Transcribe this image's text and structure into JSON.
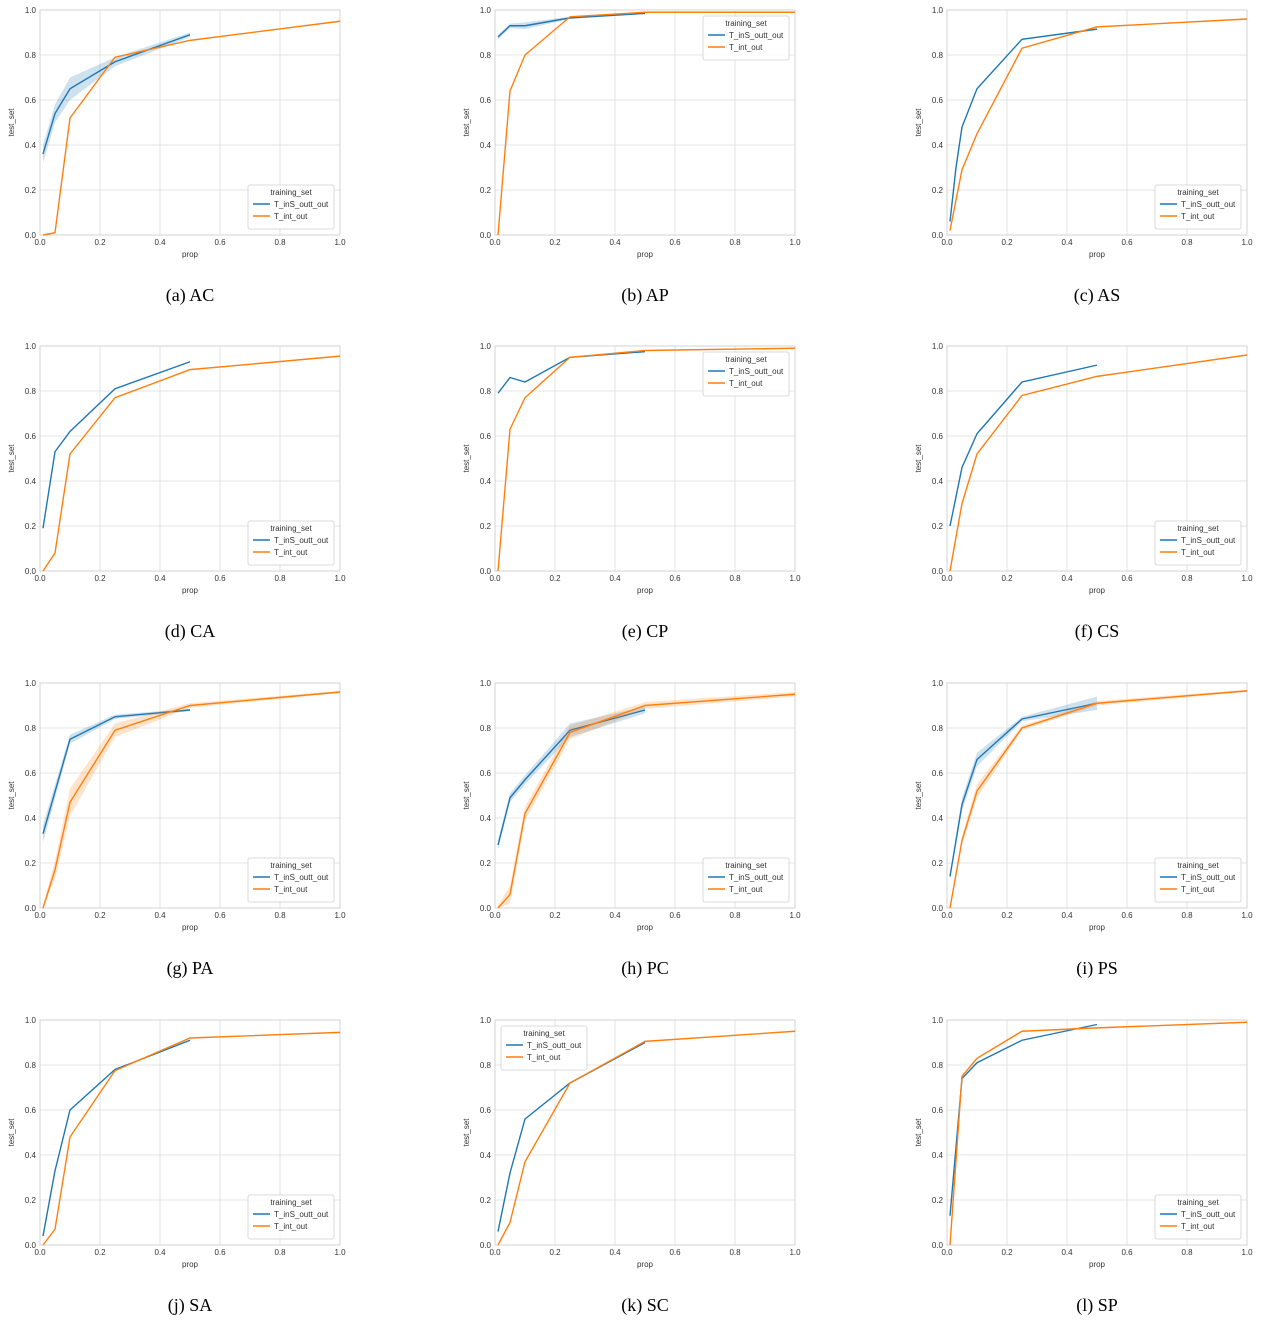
{
  "legend_title": "training_set",
  "series_names": [
    "T_inS_outt_out",
    "T_int_out"
  ],
  "colors": {
    "series_a": "#1f77b4",
    "series_b": "#ff7f0e",
    "band_a": "#1f77b4",
    "band_b": "#ff7f0e"
  },
  "chart_data": [
    {
      "type": "line",
      "caption": "(a) AC",
      "xlabel": "prop",
      "ylabel": "test_set",
      "xlim": [
        0,
        1
      ],
      "ylim": [
        0,
        1
      ],
      "xticks": [
        "0.0",
        "0.2",
        "0.4",
        "0.6",
        "0.8",
        "1.0"
      ],
      "yticks": [
        "0.0",
        "0.2",
        "0.4",
        "0.6",
        "0.8",
        "1.0"
      ],
      "grid": true,
      "legend_position": "lower-right",
      "series": [
        {
          "name": "T_inS_outt_out",
          "x": [
            0.01,
            0.05,
            0.1,
            0.25,
            0.5
          ],
          "y": [
            0.36,
            0.54,
            0.65,
            0.77,
            0.89
          ],
          "band": [
            0.04,
            0.04,
            0.05,
            0.02,
            0.01
          ]
        },
        {
          "name": "T_int_out",
          "x": [
            0.01,
            0.05,
            0.1,
            0.25,
            0.5,
            1.0
          ],
          "y": [
            0.0,
            0.01,
            0.52,
            0.79,
            0.865,
            0.95
          ]
        }
      ]
    },
    {
      "type": "line",
      "caption": "(b) AP",
      "xlabel": "prop",
      "ylabel": "test_set",
      "xlim": [
        0,
        1
      ],
      "ylim": [
        0,
        1
      ],
      "xticks": [
        "0.0",
        "0.2",
        "0.4",
        "0.6",
        "0.8",
        "1.0"
      ],
      "yticks": [
        "0.0",
        "0.2",
        "0.4",
        "0.6",
        "0.8",
        "1.0"
      ],
      "grid": true,
      "legend_position": "top-right",
      "series": [
        {
          "name": "T_inS_outt_out",
          "x": [
            0.01,
            0.05,
            0.1,
            0.25,
            0.5
          ],
          "y": [
            0.88,
            0.93,
            0.93,
            0.965,
            0.985
          ],
          "band": [
            0.01,
            0.01,
            0.015,
            0.005,
            0.003
          ]
        },
        {
          "name": "T_int_out",
          "x": [
            0.01,
            0.05,
            0.1,
            0.25,
            0.5,
            1.0
          ],
          "y": [
            0.0,
            0.64,
            0.8,
            0.97,
            0.99,
            0.99
          ]
        }
      ]
    },
    {
      "type": "line",
      "caption": "(c) AS",
      "xlabel": "prop",
      "ylabel": "test_set",
      "xlim": [
        0,
        1
      ],
      "ylim": [
        0,
        1
      ],
      "xticks": [
        "0.0",
        "0.2",
        "0.4",
        "0.6",
        "0.8",
        "1.0"
      ],
      "yticks": [
        "0.0",
        "0.2",
        "0.4",
        "0.6",
        "0.8",
        "1.0"
      ],
      "grid": true,
      "legend_position": "lower-right",
      "series": [
        {
          "name": "T_inS_outt_out",
          "x": [
            0.01,
            0.03,
            0.05,
            0.1,
            0.25,
            0.5
          ],
          "y": [
            0.06,
            0.3,
            0.48,
            0.65,
            0.87,
            0.915
          ]
        },
        {
          "name": "T_int_out",
          "x": [
            0.01,
            0.05,
            0.1,
            0.25,
            0.5,
            1.0
          ],
          "y": [
            0.02,
            0.29,
            0.45,
            0.83,
            0.925,
            0.96
          ]
        }
      ]
    },
    {
      "type": "line",
      "caption": "(d) CA",
      "xlabel": "prop",
      "ylabel": "test_set",
      "xlim": [
        0,
        1
      ],
      "ylim": [
        0,
        1
      ],
      "xticks": [
        "0.0",
        "0.2",
        "0.4",
        "0.6",
        "0.8",
        "1.0"
      ],
      "yticks": [
        "0.0",
        "0.2",
        "0.4",
        "0.6",
        "0.8",
        "1.0"
      ],
      "grid": true,
      "legend_position": "lower-right",
      "series": [
        {
          "name": "T_inS_outt_out",
          "x": [
            0.01,
            0.05,
            0.1,
            0.25,
            0.5
          ],
          "y": [
            0.19,
            0.53,
            0.62,
            0.81,
            0.93
          ]
        },
        {
          "name": "T_int_out",
          "x": [
            0.01,
            0.05,
            0.1,
            0.25,
            0.5,
            1.0
          ],
          "y": [
            0.0,
            0.08,
            0.52,
            0.77,
            0.895,
            0.955
          ]
        }
      ]
    },
    {
      "type": "line",
      "caption": "(e) CP",
      "xlabel": "prop",
      "ylabel": "test_set",
      "xlim": [
        0,
        1
      ],
      "ylim": [
        0,
        1
      ],
      "xticks": [
        "0.0",
        "0.2",
        "0.4",
        "0.6",
        "0.8",
        "1.0"
      ],
      "yticks": [
        "0.0",
        "0.2",
        "0.4",
        "0.6",
        "0.8",
        "1.0"
      ],
      "grid": true,
      "legend_position": "top-right",
      "series": [
        {
          "name": "T_inS_outt_out",
          "x": [
            0.01,
            0.05,
            0.1,
            0.25,
            0.5
          ],
          "y": [
            0.79,
            0.86,
            0.84,
            0.95,
            0.975
          ]
        },
        {
          "name": "T_int_out",
          "x": [
            0.01,
            0.05,
            0.1,
            0.25,
            0.5,
            1.0
          ],
          "y": [
            0.0,
            0.63,
            0.77,
            0.95,
            0.98,
            0.99
          ]
        }
      ]
    },
    {
      "type": "line",
      "caption": "(f) CS",
      "xlabel": "prop",
      "ylabel": "test_set",
      "xlim": [
        0,
        1
      ],
      "ylim": [
        0,
        1
      ],
      "xticks": [
        "0.0",
        "0.2",
        "0.4",
        "0.6",
        "0.8",
        "1.0"
      ],
      "yticks": [
        "0.0",
        "0.2",
        "0.4",
        "0.6",
        "0.8",
        "1.0"
      ],
      "grid": true,
      "legend_position": "lower-right",
      "series": [
        {
          "name": "T_inS_outt_out",
          "x": [
            0.01,
            0.05,
            0.1,
            0.25,
            0.5
          ],
          "y": [
            0.2,
            0.46,
            0.61,
            0.84,
            0.915
          ]
        },
        {
          "name": "T_int_out",
          "x": [
            0.01,
            0.05,
            0.1,
            0.25,
            0.5,
            1.0
          ],
          "y": [
            0.0,
            0.3,
            0.52,
            0.78,
            0.865,
            0.96
          ]
        }
      ]
    },
    {
      "type": "line",
      "caption": "(g) PA",
      "xlabel": "prop",
      "ylabel": "test_set",
      "xlim": [
        0,
        1
      ],
      "ylim": [
        0,
        1
      ],
      "xticks": [
        "0.0",
        "0.2",
        "0.4",
        "0.6",
        "0.8",
        "1.0"
      ],
      "yticks": [
        "0.0",
        "0.2",
        "0.4",
        "0.6",
        "0.8",
        "1.0"
      ],
      "grid": true,
      "legend_position": "lower-right",
      "series": [
        {
          "name": "T_inS_outt_out",
          "x": [
            0.01,
            0.1,
            0.25,
            0.5
          ],
          "y": [
            0.33,
            0.75,
            0.85,
            0.88
          ],
          "band": [
            0.04,
            0.02,
            0.01,
            0.005
          ]
        },
        {
          "name": "T_int_out",
          "x": [
            0.01,
            0.05,
            0.1,
            0.25,
            0.5,
            1.0
          ],
          "y": [
            0.0,
            0.17,
            0.47,
            0.79,
            0.9,
            0.96
          ],
          "band": [
            0.01,
            0.04,
            0.06,
            0.03,
            0.01,
            0.005
          ]
        }
      ]
    },
    {
      "type": "line",
      "caption": "(h) PC",
      "xlabel": "prop",
      "ylabel": "test_set",
      "xlim": [
        0,
        1
      ],
      "ylim": [
        0,
        1
      ],
      "xticks": [
        "0.0",
        "0.2",
        "0.4",
        "0.6",
        "0.8",
        "1.0"
      ],
      "yticks": [
        "0.0",
        "0.2",
        "0.4",
        "0.6",
        "0.8",
        "1.0"
      ],
      "grid": true,
      "legend_position": "lower-right",
      "series": [
        {
          "name": "T_inS_outt_out",
          "x": [
            0.01,
            0.05,
            0.1,
            0.25,
            0.5
          ],
          "y": [
            0.28,
            0.49,
            0.57,
            0.79,
            0.88
          ],
          "band": [
            0.02,
            0.02,
            0.02,
            0.03,
            0.015
          ]
        },
        {
          "name": "T_int_out",
          "x": [
            0.01,
            0.05,
            0.1,
            0.25,
            0.5,
            1.0
          ],
          "y": [
            0.0,
            0.06,
            0.42,
            0.78,
            0.9,
            0.95
          ],
          "band": [
            0.01,
            0.04,
            0.03,
            0.03,
            0.015,
            0.01
          ]
        }
      ]
    },
    {
      "type": "line",
      "caption": "(i) PS",
      "xlabel": "prop",
      "ylabel": "test_set",
      "xlim": [
        0,
        1
      ],
      "ylim": [
        0,
        1
      ],
      "xticks": [
        "0.0",
        "0.2",
        "0.4",
        "0.6",
        "0.8",
        "1.0"
      ],
      "yticks": [
        "0.0",
        "0.2",
        "0.4",
        "0.6",
        "0.8",
        "1.0"
      ],
      "grid": true,
      "legend_position": "lower-right",
      "series": [
        {
          "name": "T_inS_outt_out",
          "x": [
            0.01,
            0.05,
            0.1,
            0.25,
            0.5
          ],
          "y": [
            0.14,
            0.46,
            0.66,
            0.84,
            0.91
          ],
          "band": [
            0.01,
            0.03,
            0.03,
            0.01,
            0.03
          ]
        },
        {
          "name": "T_int_out",
          "x": [
            0.01,
            0.05,
            0.1,
            0.25,
            0.5,
            1.0
          ],
          "y": [
            0.0,
            0.3,
            0.52,
            0.8,
            0.91,
            0.965
          ],
          "band": [
            0.005,
            0.02,
            0.03,
            0.01,
            0.01,
            0.005
          ]
        }
      ]
    },
    {
      "type": "line",
      "caption": "(j) SA",
      "xlabel": "prop",
      "ylabel": "test_set",
      "xlim": [
        0,
        1
      ],
      "ylim": [
        0,
        1
      ],
      "xticks": [
        "0.0",
        "0.2",
        "0.4",
        "0.6",
        "0.8",
        "1.0"
      ],
      "yticks": [
        "0.0",
        "0.2",
        "0.4",
        "0.6",
        "0.8",
        "1.0"
      ],
      "grid": true,
      "legend_position": "lower-right",
      "series": [
        {
          "name": "T_inS_outt_out",
          "x": [
            0.01,
            0.05,
            0.1,
            0.25,
            0.5
          ],
          "y": [
            0.04,
            0.33,
            0.6,
            0.78,
            0.91
          ]
        },
        {
          "name": "T_int_out",
          "x": [
            0.01,
            0.05,
            0.1,
            0.25,
            0.5,
            1.0
          ],
          "y": [
            0.0,
            0.07,
            0.48,
            0.775,
            0.92,
            0.945
          ]
        }
      ]
    },
    {
      "type": "line",
      "caption": "(k) SC",
      "xlabel": "prop",
      "ylabel": "test_set",
      "xlim": [
        0,
        1
      ],
      "ylim": [
        0,
        1
      ],
      "xticks": [
        "0.0",
        "0.2",
        "0.4",
        "0.6",
        "0.8",
        "1.0"
      ],
      "yticks": [
        "0.0",
        "0.2",
        "0.4",
        "0.6",
        "0.8",
        "1.0"
      ],
      "grid": true,
      "legend_position": "top-left",
      "series": [
        {
          "name": "T_inS_outt_out",
          "x": [
            0.01,
            0.05,
            0.1,
            0.25,
            0.5
          ],
          "y": [
            0.06,
            0.32,
            0.56,
            0.72,
            0.9
          ]
        },
        {
          "name": "T_int_out",
          "x": [
            0.01,
            0.05,
            0.1,
            0.25,
            0.5,
            1.0
          ],
          "y": [
            0.0,
            0.1,
            0.37,
            0.72,
            0.905,
            0.95
          ]
        }
      ]
    },
    {
      "type": "line",
      "caption": "(l) SP",
      "xlabel": "prop",
      "ylabel": "test_set",
      "xlim": [
        0,
        1
      ],
      "ylim": [
        0,
        1
      ],
      "xticks": [
        "0.0",
        "0.2",
        "0.4",
        "0.6",
        "0.8",
        "1.0"
      ],
      "yticks": [
        "0.0",
        "0.2",
        "0.4",
        "0.6",
        "0.8",
        "1.0"
      ],
      "grid": true,
      "legend_position": "lower-right",
      "series": [
        {
          "name": "T_inS_outt_out",
          "x": [
            0.01,
            0.05,
            0.1,
            0.25,
            0.5
          ],
          "y": [
            0.13,
            0.74,
            0.81,
            0.91,
            0.98
          ]
        },
        {
          "name": "T_int_out",
          "x": [
            0.01,
            0.05,
            0.1,
            0.25,
            0.5,
            1.0
          ],
          "y": [
            0.0,
            0.75,
            0.83,
            0.95,
            0.965,
            0.99
          ]
        }
      ]
    }
  ]
}
